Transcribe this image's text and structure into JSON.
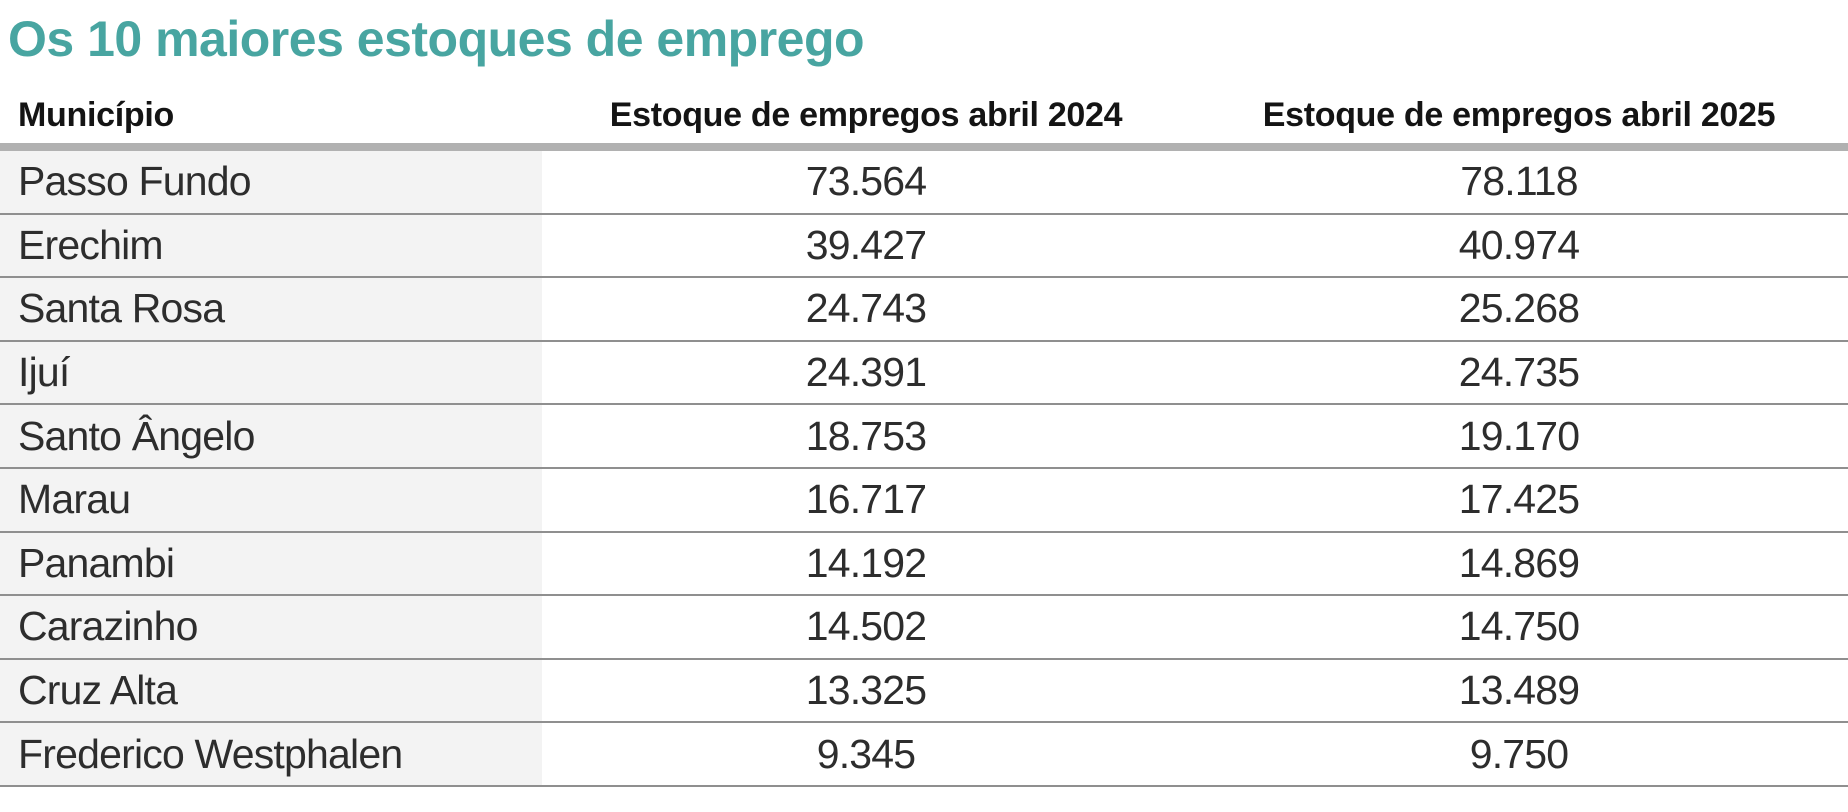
{
  "title": "Os 10 maiores estoques de emprego",
  "table": {
    "columns": [
      "Município",
      "Estoque de empregos abril 2024",
      "Estoque de empregos abril 2025"
    ],
    "rows": [
      {
        "municipio": "Passo Fundo",
        "abril_2024": "73.564",
        "abril_2025": "78.118"
      },
      {
        "municipio": "Erechim",
        "abril_2024": "39.427",
        "abril_2025": "40.974"
      },
      {
        "municipio": "Santa Rosa",
        "abril_2024": "24.743",
        "abril_2025": "25.268"
      },
      {
        "municipio": "Ijuí",
        "abril_2024": "24.391",
        "abril_2025": "24.735"
      },
      {
        "municipio": "Santo Ângelo",
        "abril_2024": "18.753",
        "abril_2025": "19.170"
      },
      {
        "municipio": "Marau",
        "abril_2024": "16.717",
        "abril_2025": "17.425"
      },
      {
        "municipio": "Panambi",
        "abril_2024": "14.192",
        "abril_2025": "14.869"
      },
      {
        "municipio": "Carazinho",
        "abril_2024": "14.502",
        "abril_2025": "14.750"
      },
      {
        "municipio": "Cruz Alta",
        "abril_2024": "13.325",
        "abril_2025": "13.489"
      },
      {
        "municipio": "Frederico Westphalen",
        "abril_2024": "9.345",
        "abril_2025": "9.750"
      }
    ]
  },
  "colors": {
    "title_teal": "#48a5a1",
    "header_bar_gray": "#b1b1b1",
    "row_divider_gray": "#8f8f8f",
    "municipio_column_bg": "#f3f3f3",
    "body_text": "#2d2d2d",
    "header_text": "#141414"
  },
  "chart_data": {
    "type": "table",
    "title": "Os 10 maiores estoques de emprego",
    "columns": [
      "Município",
      "Estoque de empregos abril 2024",
      "Estoque de empregos abril 2025"
    ],
    "rows": [
      [
        "Passo Fundo",
        "73.564",
        "78.118"
      ],
      [
        "Erechim",
        "39.427",
        "40.974"
      ],
      [
        "Santa Rosa",
        "24.743",
        "25.268"
      ],
      [
        "Ijuí",
        "24.391",
        "24.735"
      ],
      [
        "Santo Ângelo",
        "18.753",
        "19.170"
      ],
      [
        "Marau",
        "16.717",
        "17.425"
      ],
      [
        "Panambi",
        "14.192",
        "14.869"
      ],
      [
        "Carazinho",
        "14.502",
        "14.750"
      ],
      [
        "Cruz Alta",
        "13.325",
        "13.489"
      ],
      [
        "Frederico Westphalen",
        "9.345",
        "9.750"
      ]
    ],
    "values_2024": [
      73564,
      39427,
      24743,
      24391,
      18753,
      16717,
      14192,
      14502,
      13325,
      9345
    ],
    "values_2025": [
      78118,
      40974,
      25268,
      24735,
      19170,
      17425,
      14869,
      14750,
      13489,
      9750
    ],
    "number_format": "pt-BR thousands separator (.)",
    "layout": {
      "column_1_align": "left",
      "column_2_align": "center",
      "column_3_align": "center",
      "alternating_bg": "first column only, light gray",
      "grid": "horizontal dividers only"
    }
  }
}
